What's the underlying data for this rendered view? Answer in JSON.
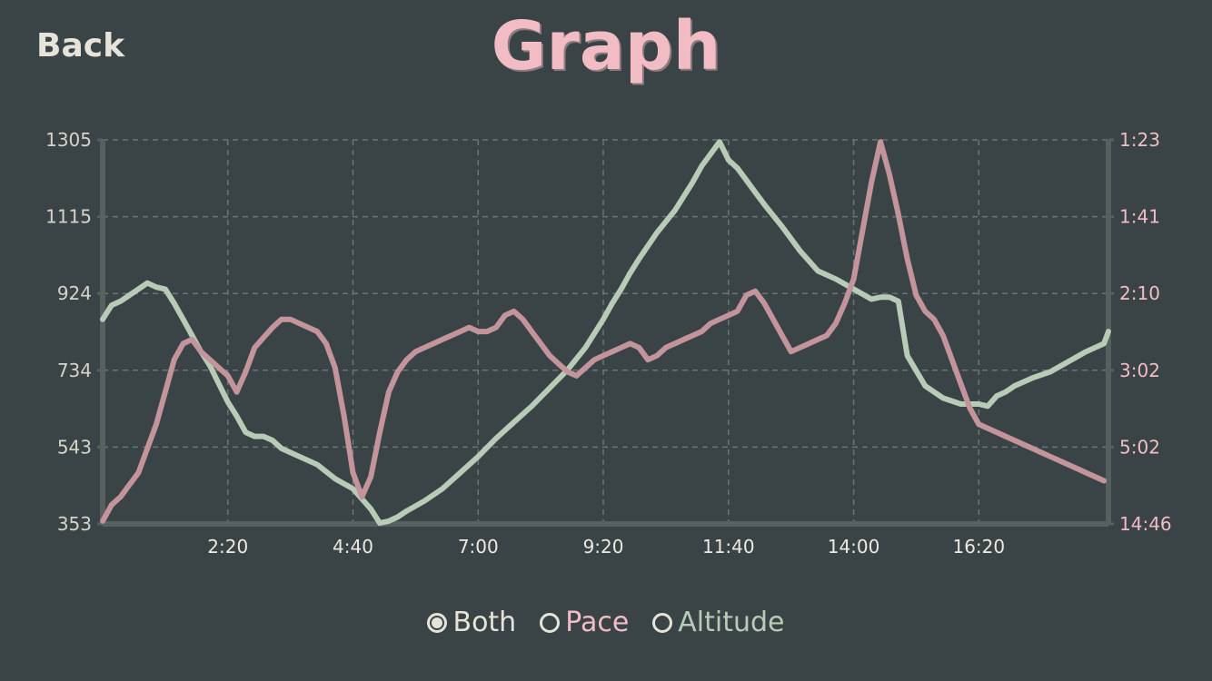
{
  "header": {
    "back_label": "Back",
    "title": "Graph"
  },
  "legend": {
    "options": [
      {
        "label": "Both",
        "selected": true,
        "color": "#e6e3da"
      },
      {
        "label": "Pace",
        "selected": false,
        "color": "#f2bcc4"
      },
      {
        "label": "Altitude",
        "selected": false,
        "color": "#b7cbb7"
      }
    ]
  },
  "colors": {
    "background": "#3a4446",
    "pace": "#c3949b",
    "altitude": "#b7cbb7",
    "grid": "#6b7573",
    "axis": "#56605f"
  },
  "chart_data": {
    "type": "line",
    "grid": true,
    "x_ticks": [
      "2:20",
      "4:40",
      "7:00",
      "9:20",
      "11:40",
      "14:00",
      "16:20"
    ],
    "x_tick_values_sec": [
      140,
      280,
      420,
      560,
      700,
      840,
      980
    ],
    "xlim_sec": [
      0,
      1125
    ],
    "y_left": {
      "label": "Altitude",
      "ticks": [
        "1305",
        "1115",
        "924",
        "734",
        "543",
        "353"
      ],
      "ylim": [
        353,
        1305
      ]
    },
    "y_right": {
      "label": "Pace",
      "ticks": [
        "1:23",
        "1:41",
        "2:10",
        "3:02",
        "5:02",
        "14:46"
      ]
    },
    "series": [
      {
        "name": "Altitude",
        "x": [
          0,
          10,
          20,
          30,
          40,
          50,
          60,
          70,
          80,
          90,
          100,
          110,
          120,
          130,
          140,
          150,
          160,
          170,
          180,
          190,
          200,
          220,
          240,
          260,
          280,
          300,
          310,
          320,
          330,
          340,
          360,
          380,
          400,
          420,
          440,
          460,
          480,
          500,
          520,
          540,
          560,
          570,
          580,
          590,
          600,
          620,
          640,
          660,
          670,
          680,
          690,
          700,
          710,
          720,
          730,
          740,
          760,
          780,
          800,
          820,
          840,
          860,
          870,
          880,
          890,
          900,
          920,
          940,
          960,
          970,
          980,
          990,
          1000,
          1010,
          1020,
          1040,
          1060,
          1080,
          1100,
          1120,
          1125
        ],
        "y": [
          860,
          895,
          905,
          920,
          935,
          950,
          940,
          935,
          900,
          860,
          820,
          780,
          745,
          700,
          655,
          620,
          580,
          570,
          570,
          560,
          540,
          520,
          500,
          465,
          440,
          390,
          355,
          360,
          370,
          385,
          410,
          440,
          480,
          520,
          565,
          605,
          645,
          690,
          735,
          790,
          860,
          900,
          935,
          975,
          1010,
          1075,
          1130,
          1200,
          1240,
          1270,
          1300,
          1255,
          1235,
          1205,
          1175,
          1145,
          1090,
          1030,
          980,
          960,
          935,
          910,
          915,
          915,
          905,
          770,
          695,
          665,
          650,
          650,
          650,
          645,
          670,
          680,
          695,
          715,
          730,
          755,
          780,
          800,
          830
        ]
      },
      {
        "name": "Pace",
        "x": [
          0,
          10,
          20,
          30,
          40,
          50,
          60,
          70,
          80,
          90,
          100,
          110,
          120,
          130,
          140,
          150,
          160,
          170,
          180,
          190,
          200,
          210,
          220,
          230,
          240,
          250,
          260,
          270,
          280,
          290,
          300,
          310,
          320,
          330,
          340,
          350,
          360,
          370,
          380,
          390,
          400,
          410,
          420,
          430,
          440,
          450,
          460,
          470,
          480,
          490,
          500,
          510,
          520,
          530,
          540,
          550,
          560,
          570,
          580,
          590,
          600,
          610,
          620,
          630,
          640,
          650,
          660,
          670,
          680,
          690,
          700,
          710,
          720,
          730,
          740,
          750,
          760,
          770,
          780,
          790,
          800,
          810,
          820,
          830,
          840,
          850,
          860,
          870,
          880,
          890,
          900,
          910,
          920,
          930,
          940,
          950,
          960,
          970,
          980,
          990,
          1000,
          1010,
          1020,
          1030,
          1040,
          1050,
          1060,
          1070,
          1080,
          1090,
          1100,
          1110,
          1120
        ],
        "y": [
          360,
          400,
          420,
          450,
          480,
          540,
          600,
          680,
          760,
          800,
          810,
          780,
          760,
          740,
          720,
          680,
          730,
          790,
          815,
          840,
          860,
          860,
          850,
          840,
          830,
          800,
          740,
          620,
          480,
          420,
          470,
          580,
          680,
          730,
          760,
          780,
          790,
          800,
          810,
          820,
          830,
          840,
          830,
          830,
          840,
          870,
          880,
          860,
          830,
          800,
          770,
          750,
          730,
          720,
          740,
          760,
          770,
          780,
          790,
          800,
          790,
          760,
          770,
          790,
          800,
          810,
          820,
          830,
          850,
          860,
          870,
          880,
          920,
          930,
          900,
          860,
          820,
          780,
          790,
          800,
          810,
          820,
          850,
          900,
          960,
          1080,
          1200,
          1300,
          1220,
          1120,
          1010,
          920,
          880,
          860,
          820,
          760,
          700,
          640,
          600,
          590,
          580,
          570,
          560,
          550,
          540,
          530,
          520,
          510,
          500,
          490,
          480,
          470,
          460
        ]
      }
    ]
  }
}
